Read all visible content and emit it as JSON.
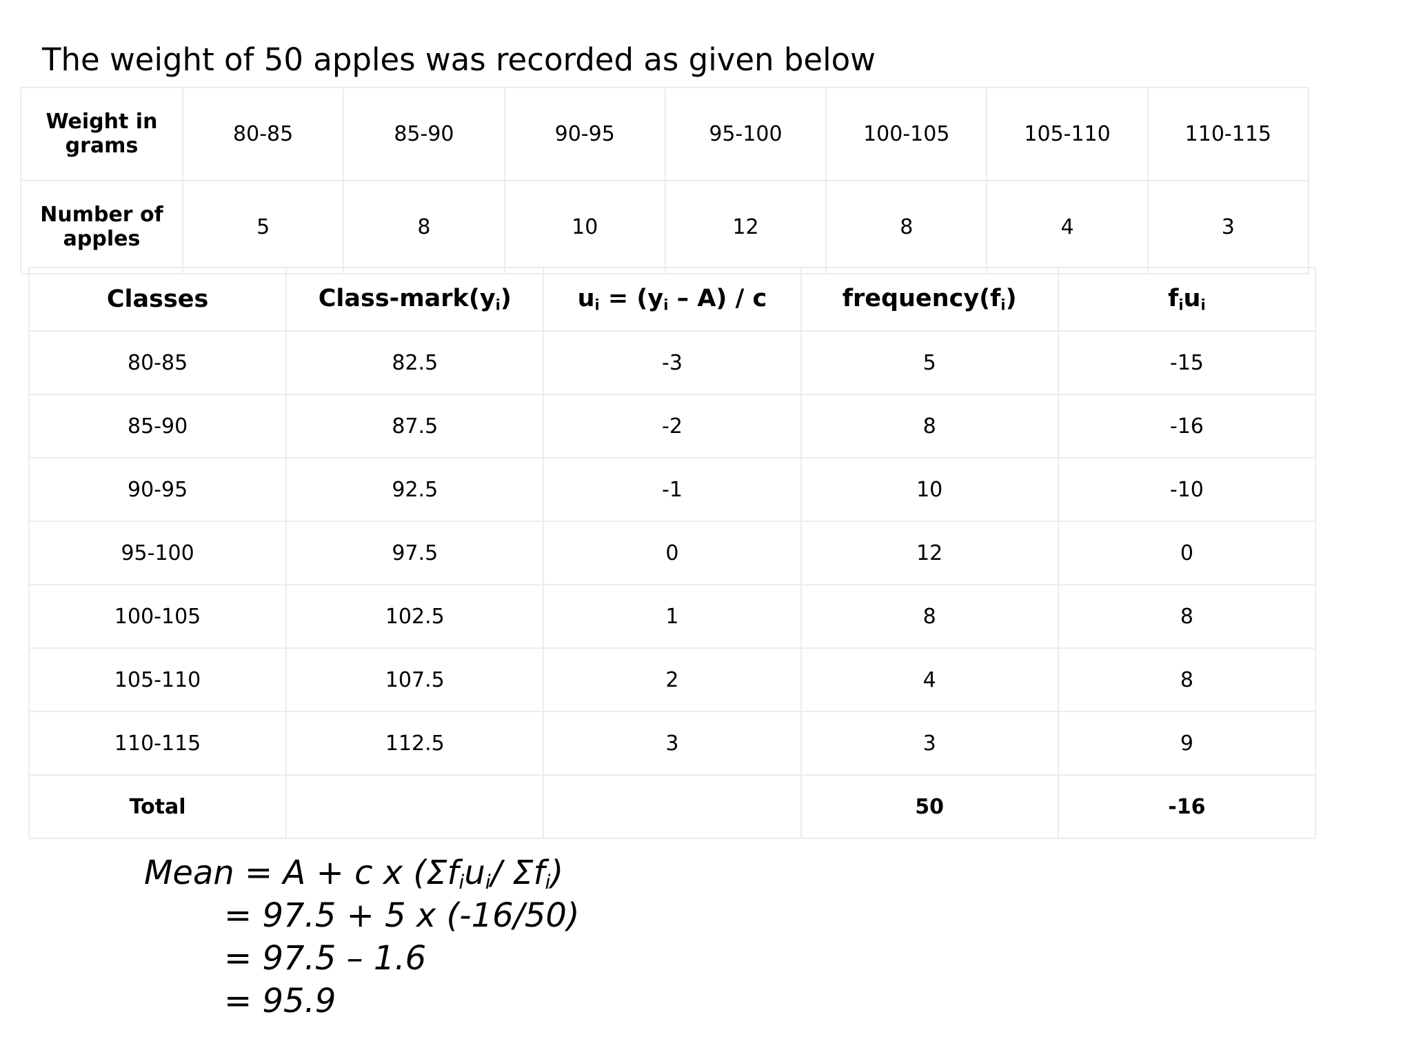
{
  "title": "The weight of 50 apples was recorded as given below",
  "table1": {
    "rows": [
      [
        "Weight in grams",
        "80-85",
        "85-90",
        "90-95",
        "95-100",
        "100-105",
        "105-110",
        "110-115"
      ],
      [
        "Number of apples",
        5,
        8,
        10,
        12,
        8,
        4,
        3
      ]
    ]
  },
  "table2": {
    "header": [
      [
        "Classes"
      ],
      [
        "Class-mark(y",
        "i",
        ")"
      ],
      [
        "u",
        "i",
        " = (y",
        "i",
        " – A) / c"
      ],
      [
        "frequency(f",
        "i",
        ")"
      ],
      [
        "f",
        "i",
        "u",
        "i"
      ]
    ],
    "rows": [
      [
        "80-85",
        82.5,
        -3,
        5,
        -15
      ],
      [
        "85-90",
        87.5,
        -2,
        8,
        -16
      ],
      [
        "90-95",
        92.5,
        -1,
        10,
        -10
      ],
      [
        "95-100",
        97.5,
        0,
        12,
        0
      ],
      [
        "100-105",
        102.5,
        1,
        8,
        8
      ],
      [
        "105-110",
        107.5,
        2,
        4,
        8
      ],
      [
        "110-115",
        112.5,
        3,
        3,
        9
      ]
    ],
    "total": {
      "label": "Total",
      "frequency": 50,
      "fu": -16
    }
  },
  "formula": [
    [
      "Mean = A + c x (Σf",
      "i",
      "u",
      "i",
      "/ Σf",
      "i",
      ")"
    ],
    [
      "= 97.5 + 5 x (-16/50)"
    ],
    [
      "= 97.5 – 1.6"
    ],
    [
      "= 95.9"
    ]
  ]
}
